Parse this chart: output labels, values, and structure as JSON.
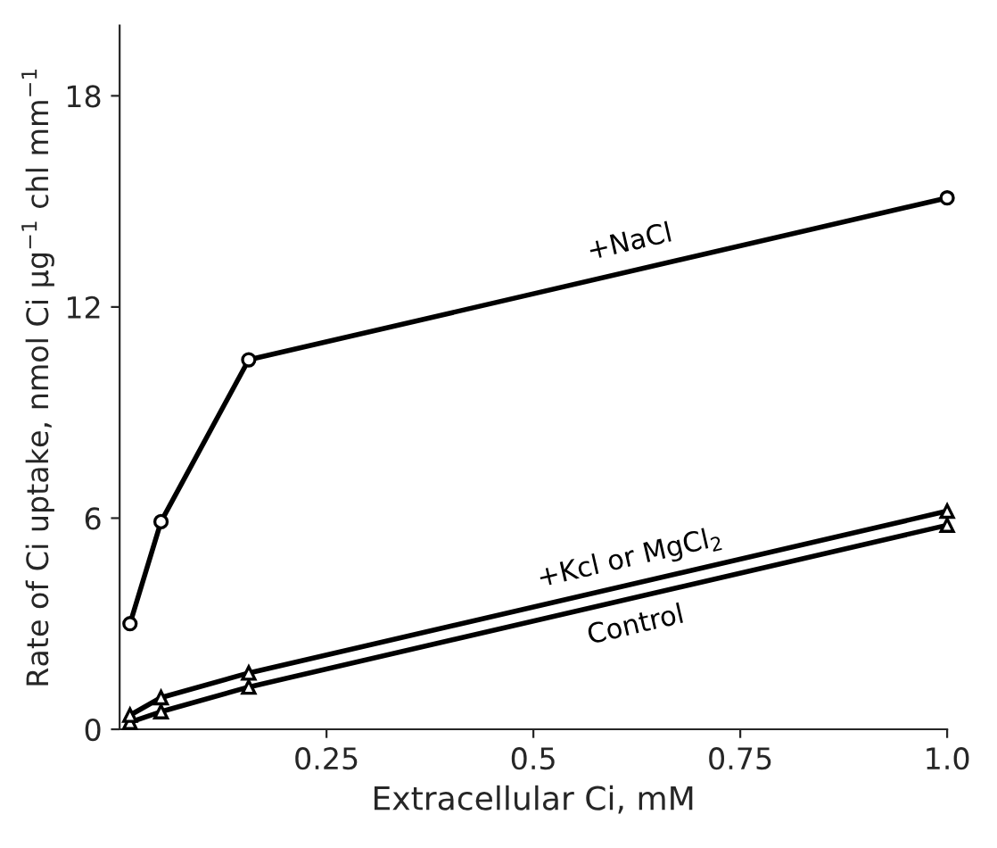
{
  "chart_data": {
    "type": "line",
    "xlabel": "Extracellular Ci, mM",
    "ylabel": "Rate of Ci uptake, nmol Ci μg$^{−1}$ chl mm$^{−1}$",
    "xlim": [
      0,
      1.0
    ],
    "xticks": [
      0.25,
      0.5,
      0.75,
      {
        "value": 1.0,
        "label": "1.0"
      }
    ],
    "ylim": [
      0,
      20
    ],
    "yticks": [
      0,
      6,
      12,
      18
    ],
    "grid": false,
    "legend": false,
    "line_style": "solid",
    "series": [
      {
        "name": "+NaCl",
        "color": "#000000",
        "marker": "circle",
        "x": [
          0.0125,
          0.05,
          0.156,
          1.0
        ],
        "values": [
          3.0,
          5.9,
          10.5,
          15.1
        ]
      },
      {
        "name": "+Kcl or MgCl$_{2}$",
        "color": "#000000",
        "marker": "triangle",
        "x": [
          0.0125,
          0.05,
          0.156,
          1.0
        ],
        "values": [
          0.4,
          0.9,
          1.6,
          6.2
        ]
      },
      {
        "name": "Control",
        "color": "#000000",
        "marker": "triangle",
        "x": [
          0.0125,
          0.05,
          0.156,
          1.0
        ],
        "values": [
          0.2,
          0.5,
          1.2,
          5.8
        ]
      }
    ]
  }
}
